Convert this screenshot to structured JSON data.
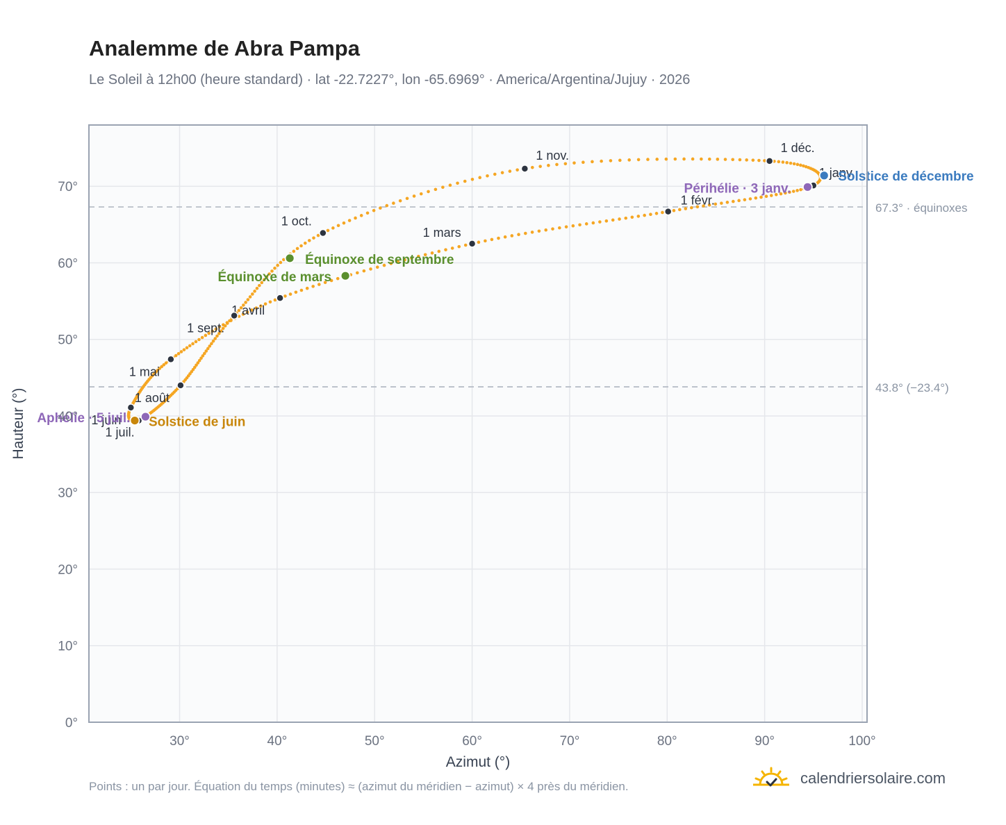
{
  "header": {
    "title": "Analemme de Abra Pampa",
    "subtitle": "Le Soleil à 12h00 (heure standard) · lat -22.7227°, lon -65.6969° · America/Argentina/Jujuy · 2026"
  },
  "footer": {
    "note": "Points : un par jour. Équation du temps (minutes) ≈ (azimut du méridien − azimut) × 4 près du méridien.",
    "brand": "calendriersolaire.com"
  },
  "colors": {
    "curve": "#f5a623",
    "month_marker": "#2d3440",
    "equinox": "#5a8f2e",
    "june_solstice": "#c8860a",
    "december_solstice": "#3b7bbf",
    "apsis": "#8e67b8",
    "grid": "#e5e7eb",
    "frame": "#9aa3b2",
    "reference_line": "#b8bec8",
    "brand_sun": "#f5b400"
  },
  "chart_data": {
    "type": "scatter",
    "title": "Analemme de Abra Pampa",
    "xlabel": "Azimut (°)",
    "ylabel": "Hauteur (°)",
    "xlim": [
      20.7,
      100.5
    ],
    "ylim": [
      0,
      78
    ],
    "xticks": [
      30,
      40,
      50,
      60,
      70,
      80,
      90,
      100
    ],
    "yticks": [
      0,
      10,
      20,
      30,
      40,
      50,
      60,
      70
    ],
    "tick_suffix": "°",
    "grid": true,
    "legend": "none",
    "reference_lines": [
      {
        "y": 67.3,
        "label": "67.3° · équinoxes"
      },
      {
        "y": 43.8,
        "label": "43.8° (−23.4°)"
      }
    ],
    "curve_anchors": [
      {
        "date": "1 janv.",
        "x": 95.0,
        "y": 70.1
      },
      {
        "date": "1 févr.",
        "x": 80.1,
        "y": 66.7
      },
      {
        "date": "1 mars",
        "x": 60.0,
        "y": 62.5
      },
      {
        "date": "1 avril",
        "x": 40.3,
        "y": 55.4
      },
      {
        "date": "1 mai",
        "x": 29.1,
        "y": 47.4
      },
      {
        "date": "1 juin",
        "x": 25.0,
        "y": 41.1
      },
      {
        "date": "1 juil.",
        "x": 25.8,
        "y": 39.4
      },
      {
        "date": "1 août",
        "x": 30.1,
        "y": 44.0
      },
      {
        "date": "1 sept.",
        "x": 35.6,
        "y": 53.1
      },
      {
        "date": "1 oct.",
        "x": 44.7,
        "y": 63.9
      },
      {
        "date": "1 nov.",
        "x": 65.4,
        "y": 72.3
      },
      {
        "date": "1 déc.",
        "x": 90.5,
        "y": 73.3
      },
      {
        "date": "1 janv.",
        "x": 95.0,
        "y": 70.1
      }
    ],
    "month_markers": [
      {
        "label": "1 janv.",
        "x": 95.0,
        "y": 70.1,
        "anchor": "start",
        "dx": 8,
        "dy": -12
      },
      {
        "label": "1 févr.",
        "x": 80.1,
        "y": 66.7,
        "anchor": "start",
        "dx": 18,
        "dy": -10
      },
      {
        "label": "1 mars",
        "x": 60.0,
        "y": 62.5,
        "anchor": "end",
        "dx": -16,
        "dy": -10
      },
      {
        "label": "1 avril",
        "x": 40.3,
        "y": 55.4,
        "anchor": "start",
        "dx": -70,
        "dy": 24
      },
      {
        "label": "1 mai",
        "x": 29.1,
        "y": 47.4,
        "anchor": "end",
        "dx": -16,
        "dy": 24
      },
      {
        "label": "1 juin",
        "x": 25.0,
        "y": 41.1,
        "anchor": "end",
        "dx": -14,
        "dy": 24
      },
      {
        "label": "1 juil.",
        "x": 25.8,
        "y": 39.4,
        "anchor": "end",
        "dx": -6,
        "dy": 23
      },
      {
        "label": "1 août",
        "x": 30.1,
        "y": 44.0,
        "anchor": "end",
        "dx": -16,
        "dy": 24
      },
      {
        "label": "1 sept.",
        "x": 35.6,
        "y": 53.1,
        "anchor": "end",
        "dx": -14,
        "dy": 24
      },
      {
        "label": "1 oct.",
        "x": 44.7,
        "y": 63.9,
        "anchor": "end",
        "dx": -16,
        "dy": -11
      },
      {
        "label": "1 nov.",
        "x": 65.4,
        "y": 72.3,
        "anchor": "start",
        "dx": 16,
        "dy": -13
      },
      {
        "label": "1 déc.",
        "x": 90.5,
        "y": 73.3,
        "anchor": "start",
        "dx": 16,
        "dy": -13
      }
    ],
    "events": [
      {
        "label": "Solstice de décembre",
        "x": 96.1,
        "y": 71.4,
        "kind": "december_solstice",
        "anchor": "start",
        "dx": 20,
        "dy": 7
      },
      {
        "label": "Périhélie · 3 janv.",
        "x": 94.4,
        "y": 69.9,
        "kind": "apsis",
        "anchor": "end",
        "dx": -24,
        "dy": 8
      },
      {
        "label": "Équinoxe de septembre",
        "x": 41.3,
        "y": 60.6,
        "kind": "equinox",
        "anchor": "start",
        "dx": 22,
        "dy": 8
      },
      {
        "label": "Équinoxe de mars",
        "x": 47.0,
        "y": 58.3,
        "kind": "equinox",
        "anchor": "end",
        "dx": -20,
        "dy": 8
      },
      {
        "label": "Solstice de juin",
        "x": 25.4,
        "y": 39.4,
        "kind": "june_solstice",
        "anchor": "start",
        "dx": 20,
        "dy": 8
      },
      {
        "label": "Aphélie · 5 juil.",
        "x": 26.5,
        "y": 39.9,
        "kind": "apsis",
        "anchor": "end",
        "dx": -22,
        "dy": 8
      }
    ]
  }
}
